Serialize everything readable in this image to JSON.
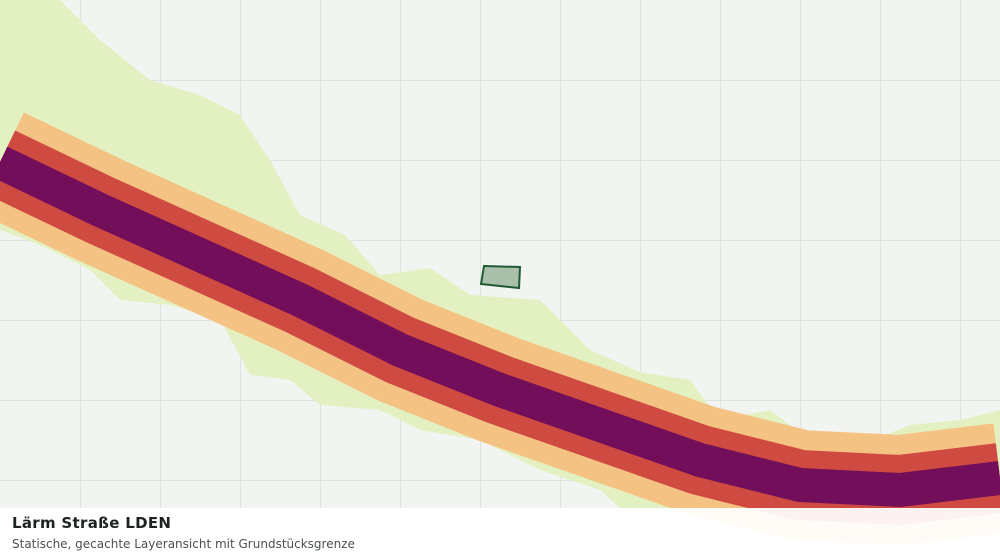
{
  "panel": {
    "title": "Lärm Straße LDEN",
    "subtitle": "Statische, gecachte Layeransicht mit Grundstücksgrenze"
  }
}
